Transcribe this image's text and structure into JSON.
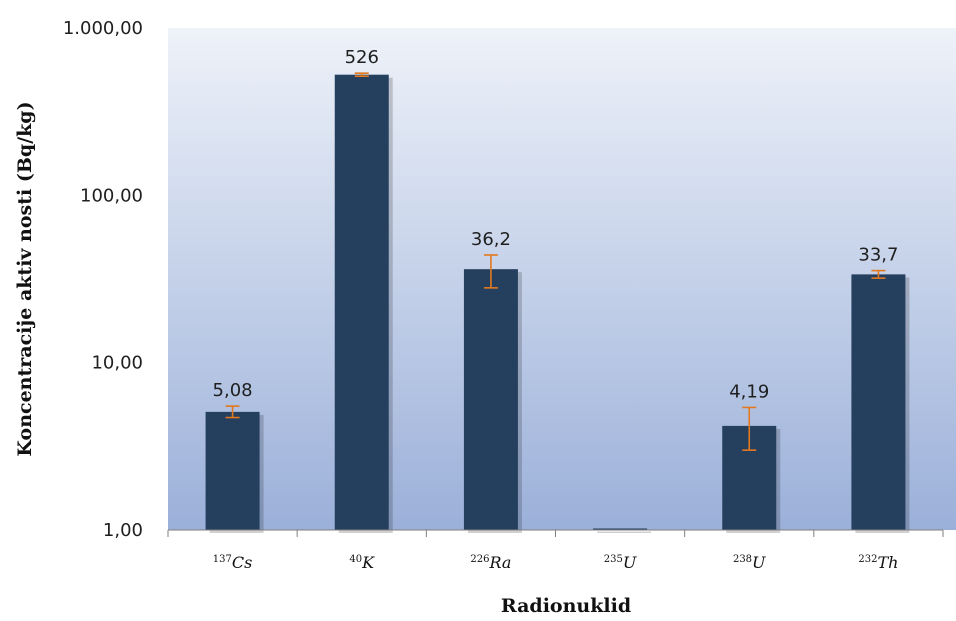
{
  "chart_data": {
    "type": "bar",
    "xlabel": "Radionuklid",
    "ylabel": "Koncentracije aktiv nosti (Bq/kg)",
    "yscale": "log",
    "ylim": [
      1,
      1000
    ],
    "yticks": [
      "1,00",
      "10,00",
      "100,00",
      "1.000,00"
    ],
    "grid": false,
    "categories": [
      {
        "sup": "137",
        "name": "Cs"
      },
      {
        "sup": "40",
        "name": "K"
      },
      {
        "sup": "226",
        "name": "Ra"
      },
      {
        "sup": "235",
        "name": "U"
      },
      {
        "sup": "238",
        "name": "U"
      },
      {
        "sup": "232",
        "name": "Th"
      }
    ],
    "values": [
      5.08,
      526,
      36.2,
      1.0,
      4.19,
      33.7
    ],
    "value_labels": [
      "5,08",
      "526",
      "36,2",
      "",
      "4,19",
      "33,7"
    ],
    "error_low": [
      4.7,
      515,
      28,
      null,
      3.0,
      32
    ],
    "error_high": [
      5.5,
      537,
      44,
      null,
      5.4,
      35.5
    ],
    "colors": {
      "bar": "#253f5f",
      "error_bar": "#e2791f",
      "plot_bg_top": "#eef2f9",
      "plot_bg_bottom": "#9bb0d9"
    }
  }
}
